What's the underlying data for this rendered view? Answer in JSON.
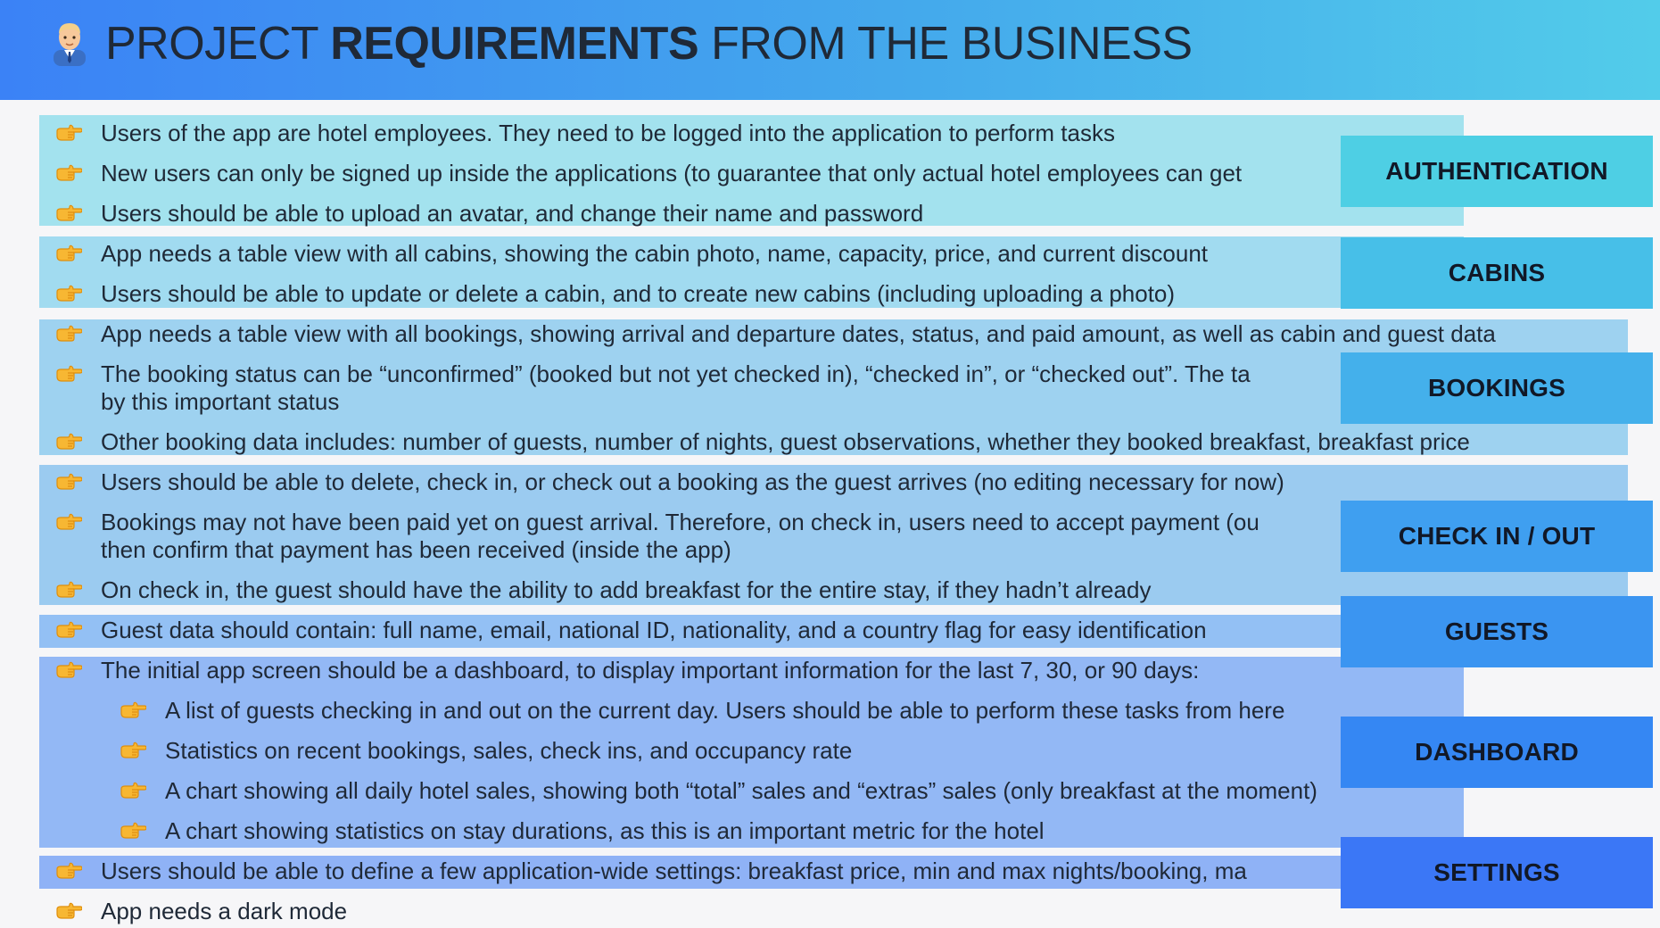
{
  "header": {
    "title_before": "PROJECT",
    "title_bold": "REQUIREMENTS",
    "title_after": "FROM THE BUSINESS",
    "icon": "office-worker-icon"
  },
  "bullet_icon": "pointing-hand-icon",
  "colors": {
    "header_start": "#3b82f6",
    "header_end": "#52ccea",
    "band_authentication": "#a3e2ee",
    "band_cabins": "#a1dbf0",
    "band_bookings": "#9ed2f0",
    "band_checkin": "#9bcbf0",
    "band_guests": "#93c0f4",
    "band_dashboard": "#93b8f5",
    "band_settings": "#8fb2f6"
  },
  "items": {
    "auth_1": "Users of the app are hotel employees. They need to be logged into the application to perform tasks",
    "auth_2": "New users can only be signed up inside the applications (to guarantee that only actual hotel employees can get",
    "auth_3": "Users should be able to upload an avatar, and change their name and password",
    "cabins_1": "App needs a table view with all cabins, showing the cabin photo, name, capacity, price, and current discount",
    "cabins_2": "Users should be able to update or delete a cabin, and to create new cabins (including uploading a photo)",
    "bookings_1": "App needs a table view with all bookings, showing arrival and departure dates, status, and paid amount, as well as cabin and guest data",
    "bookings_2a": "The booking status can be “unconfirmed” (booked but not yet checked in), “checked in”, or “checked out”. The ta",
    "bookings_2b": "by this important status",
    "bookings_3": "Other booking data includes: number of guests, number of nights, guest observations, whether they booked breakfast, breakfast price",
    "checkin_1": "Users should be able to delete, check in, or check out a booking as the guest arrives (no editing necessary for now)",
    "checkin_2a": "Bookings may not have been paid yet on guest arrival. Therefore, on check in, users need to accept payment (ou",
    "checkin_2b": "then confirm that payment has been received (inside the app)",
    "checkin_3": "On check in, the guest should have the ability to add breakfast for the entire stay, if they hadn’t already",
    "guests_1": "Guest data should contain: full name, email, national ID, nationality, and a country flag for easy identification",
    "dashboard_1": "The initial app screen should be a dashboard, to display important information for the last 7, 30, or 90 days:",
    "dashboard_2": "A list of guests checking in and out on the current day. Users should be able to perform these tasks from here",
    "dashboard_3": "Statistics on recent bookings, sales, check ins, and occupancy rate",
    "dashboard_4": "A chart showing all daily hotel sales, showing both “total” sales and “extras” sales (only breakfast at the moment)",
    "dashboard_5": "A chart showing statistics on stay durations, as this is an important metric for the hotel",
    "settings_1": "Users should be able to define a few application-wide settings: breakfast price, min and max nights/booking, ma",
    "settings_2": "App needs a dark mode"
  },
  "labels": {
    "authentication": "AUTHENTICATION",
    "cabins": "CABINS",
    "bookings": "BOOKINGS",
    "checkin": "CHECK IN / OUT",
    "guests": "GUESTS",
    "dashboard": "DASHBOARD",
    "settings": "SETTINGS"
  },
  "label_colors": {
    "authentication": "#4ecfe4",
    "cabins": "#47bfe8",
    "bookings": "#44b0eb",
    "checkin": "#3f9ff0",
    "guests": "#3b95f1",
    "dashboard": "#3587f3",
    "settings": "#3b77f6"
  }
}
